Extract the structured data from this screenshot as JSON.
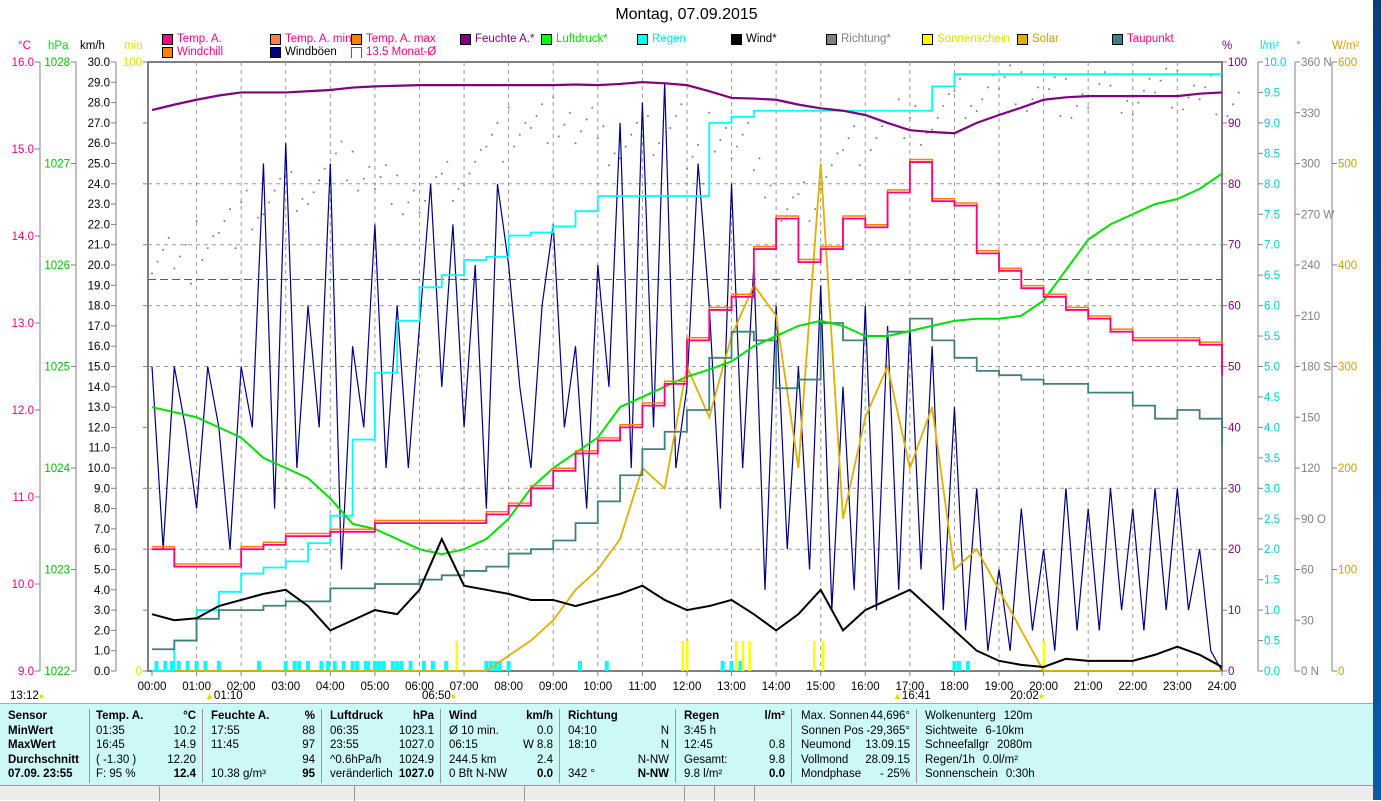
{
  "title": "Montag, 07.09.2015",
  "legend": [
    {
      "label": "Temp. A.",
      "color": "#ff0080",
      "text": "#ff0080"
    },
    {
      "label": "Temp. A. min",
      "color": "#ff8040",
      "text": "#ff0080"
    },
    {
      "label": "Temp. A. max",
      "color": "#ff8000",
      "text": "#ff0080"
    },
    {
      "label": "Feuchte A.*",
      "color": "#800080",
      "text": "#800080"
    },
    {
      "label": "Luftdruck*",
      "color": "#00ff00",
      "text": "#00e000"
    },
    {
      "label": "Regen",
      "color": "#00ffff",
      "text": "#00e0e0"
    },
    {
      "label": "Wind*",
      "color": "#000000",
      "text": "#000"
    },
    {
      "label": "Richtung*",
      "color": "#808080",
      "text": "#808080"
    },
    {
      "label": "Sonnenschein",
      "color": "#ffff00",
      "text": "#e0e000"
    },
    {
      "label": "Solar",
      "color": "#e0b000",
      "text": "#d0a000"
    },
    {
      "label": "Taupunkt",
      "color": "#408080",
      "text": "#ff0080"
    },
    {
      "label": "Windchill",
      "color": "#ff8000",
      "text": "#ff0080"
    },
    {
      "label": "Windböen",
      "color": "#000080",
      "text": "#000"
    },
    {
      "label": "13.5 Monat-Ø",
      "color": "#ff0080",
      "text": "#ff0080"
    }
  ],
  "units": {
    "c": "°C",
    "hpa": "hPa",
    "kmh": "km/h",
    "min": "min",
    "pct": "%",
    "lm2": "l/m²",
    "deg": "°",
    "wm2": "W/m²"
  },
  "chart_data": {
    "type": "line",
    "x_hours_range": [
      0,
      24
    ],
    "x_ticks": [
      "00:00",
      "01:00",
      "02:00",
      "03:00",
      "04:00",
      "05:00",
      "06:00",
      "07:00",
      "08:00",
      "09:00",
      "10:00",
      "11:00",
      "12:00",
      "13:00",
      "14:00",
      "15:00",
      "16:00",
      "17:00",
      "18:00",
      "19:00",
      "20:00",
      "21:00",
      "22:00",
      "23:00",
      "24:00"
    ],
    "axes": {
      "temp": [
        9,
        16
      ],
      "pressure": [
        1022,
        1028
      ],
      "wind": [
        0,
        30
      ],
      "sun_min": [
        0,
        100
      ],
      "humidity": [
        0,
        100
      ],
      "rain": [
        0,
        10
      ],
      "direction": [
        0,
        360
      ],
      "solar": [
        0,
        600
      ]
    },
    "monthly_avg_temp": 13.5,
    "half_hour_series": {
      "temp": [
        10.4,
        10.2,
        10.2,
        10.2,
        10.4,
        10.45,
        10.55,
        10.55,
        10.6,
        10.6,
        10.7,
        10.7,
        10.7,
        10.7,
        10.7,
        10.8,
        10.9,
        11.1,
        11.3,
        11.5,
        11.65,
        11.8,
        12.05,
        12.3,
        12.8,
        13.15,
        13.3,
        13.85,
        14.2,
        13.7,
        13.85,
        14.2,
        14.1,
        14.5,
        14.85,
        14.4,
        14.35,
        13.8,
        13.6,
        13.4,
        13.3,
        13.15,
        13.05,
        12.9,
        12.8,
        12.8,
        12.8,
        12.75,
        12.4
      ],
      "dewpoint": [
        9.25,
        9.35,
        9.6,
        9.7,
        9.7,
        9.75,
        9.8,
        9.8,
        9.95,
        9.95,
        10.0,
        10.0,
        10.05,
        10.1,
        10.15,
        10.2,
        10.35,
        10.4,
        10.5,
        10.7,
        10.95,
        11.25,
        11.55,
        11.75,
        12.0,
        12.6,
        12.9,
        12.8,
        12.25,
        12.35,
        13.0,
        12.8,
        12.85,
        12.9,
        13.05,
        12.8,
        12.6,
        12.45,
        12.4,
        12.35,
        12.3,
        12.3,
        12.2,
        12.2,
        12.05,
        11.9,
        12.0,
        11.9,
        11.6
      ],
      "pressure": [
        1024.6,
        1024.55,
        1024.5,
        1024.4,
        1024.3,
        1024.1,
        1024.0,
        1023.9,
        1023.7,
        1023.45,
        1023.4,
        1023.3,
        1023.2,
        1023.15,
        1023.2,
        1023.3,
        1023.5,
        1023.8,
        1024.0,
        1024.15,
        1024.3,
        1024.6,
        1024.7,
        1024.8,
        1024.9,
        1024.97,
        1025.05,
        1025.2,
        1025.3,
        1025.4,
        1025.45,
        1025.4,
        1025.3,
        1025.3,
        1025.35,
        1025.4,
        1025.45,
        1025.47,
        1025.47,
        1025.5,
        1025.65,
        1025.95,
        1026.25,
        1026.4,
        1026.5,
        1026.6,
        1026.65,
        1026.75,
        1026.9
      ],
      "humidity": [
        92.1,
        93,
        93.8,
        94.5,
        95,
        95,
        95,
        95.2,
        95.4,
        95.8,
        96,
        96.1,
        96.2,
        96.2,
        96.2,
        96.2,
        96.2,
        96.2,
        96.2,
        96.3,
        96.2,
        96.4,
        96.7,
        96.5,
        96.2,
        95.2,
        94.1,
        94,
        93.8,
        93,
        92.4,
        92,
        91.3,
        90,
        88.8,
        88.5,
        88.3,
        90,
        91.3,
        92.5,
        93.8,
        94.2,
        94.4,
        94.4,
        94.4,
        94.4,
        94.4,
        94.8,
        95
      ],
      "rain_total": [
        0,
        0.5,
        1.0,
        1.3,
        1.6,
        1.7,
        1.8,
        2.1,
        2.55,
        3.8,
        4.9,
        5.75,
        6.3,
        6.5,
        6.75,
        6.8,
        7.15,
        7.2,
        7.3,
        7.55,
        7.8,
        7.8,
        7.8,
        7.8,
        7.8,
        9.0,
        9.1,
        9.2,
        9.2,
        9.2,
        9.2,
        9.2,
        9.2,
        9.2,
        9.2,
        9.6,
        9.8,
        9.8,
        9.8,
        9.8,
        9.8,
        9.8,
        9.8,
        9.8,
        9.8,
        9.8,
        9.8,
        9.8,
        9.8
      ],
      "wind": [
        2.8,
        2.5,
        2.6,
        3.2,
        3.5,
        3.8,
        4.0,
        3.2,
        2.0,
        2.5,
        3.0,
        2.8,
        4.0,
        6.5,
        4.2,
        4.0,
        3.8,
        3.5,
        3.5,
        3.2,
        3.5,
        3.8,
        4.2,
        3.5,
        3.0,
        3.2,
        3.5,
        2.8,
        2.0,
        2.8,
        4.0,
        2.0,
        3.0,
        3.5,
        4.0,
        3.0,
        2.0,
        1.0,
        0.5,
        0.3,
        0.2,
        0.6,
        0.5,
        0.5,
        0.5,
        0.8,
        1.2,
        0.8,
        0.2
      ],
      "solar": [
        0,
        0,
        0,
        0,
        0,
        0,
        0,
        0,
        0,
        0,
        0,
        0,
        0,
        0,
        0,
        0,
        15,
        30,
        50,
        80,
        100,
        130,
        200,
        180,
        300,
        250,
        330,
        380,
        350,
        200,
        500,
        150,
        250,
        300,
        200,
        260,
        100,
        120,
        80,
        40,
        0,
        0,
        0,
        0,
        0,
        0,
        0,
        0,
        0
      ],
      "direction": [
        250,
        240,
        255,
        265,
        270,
        280,
        285,
        290,
        300,
        295,
        290,
        285,
        280,
        290,
        300,
        310,
        320,
        325,
        330,
        320,
        310,
        315,
        320,
        330,
        300,
        320,
        310,
        290,
        270,
        280,
        300,
        310,
        320,
        330,
        320,
        330,
        340,
        345,
        345,
        342,
        342,
        342,
        342,
        342,
        342,
        342,
        342,
        342,
        342
      ]
    },
    "gusts_15min": [
      15,
      6,
      15,
      12,
      8,
      15,
      12,
      6,
      15,
      12,
      25,
      8,
      26,
      10,
      18,
      12,
      25,
      5,
      16,
      12,
      22,
      10,
      18,
      10,
      17,
      24,
      14,
      22,
      12,
      20,
      8,
      24,
      20,
      14,
      10,
      18,
      22,
      12,
      16,
      8,
      20,
      14,
      27,
      10,
      28,
      12,
      29,
      10,
      14,
      25,
      18,
      8,
      24,
      10,
      20,
      4,
      18,
      6,
      15,
      5,
      19,
      3,
      14,
      4,
      18,
      3,
      17,
      4,
      17,
      5,
      16,
      3,
      13,
      2,
      9,
      1,
      5,
      1,
      8,
      2,
      6,
      1,
      9,
      2,
      8,
      2,
      9,
      3,
      8,
      2,
      9,
      3,
      9,
      3,
      6,
      1,
      0
    ],
    "sunshine_hours": [
      6.83,
      11.9,
      12.0,
      13.1,
      13.25,
      13.4,
      14.85,
      15.05,
      20.0
    ],
    "rain_event_hours": [
      0.1,
      0.3,
      0.45,
      0.6,
      0.8,
      1.0,
      1.2,
      1.5,
      2.4,
      3.0,
      3.2,
      3.3,
      3.5,
      3.8,
      3.95,
      4.1,
      4.3,
      4.5,
      4.6,
      4.8,
      4.85,
      5.0,
      5.1,
      5.2,
      5.4,
      5.5,
      5.6,
      5.8,
      6.1,
      6.3,
      6.6,
      7.5,
      7.6,
      7.7,
      7.8,
      8.0,
      9.6,
      10.2,
      12.8,
      13.0,
      13.2,
      18.0,
      18.1,
      18.3
    ]
  },
  "markers": [
    {
      "label": "13:12"
    },
    {
      "label": "01:10"
    },
    {
      "label": "06:50"
    },
    {
      "label": "16:41"
    },
    {
      "label": "20:02"
    }
  ],
  "table": {
    "sensor": {
      "head": "Sensor",
      "rows": [
        "MinWert",
        "MaxWert",
        "Durchschnitt",
        "07.09. 23:55"
      ]
    },
    "temp": {
      "head": "Temp. A.",
      "unit": "°C",
      "rows": [
        [
          "01:35",
          "10.2"
        ],
        [
          "16:45",
          "14.9"
        ],
        [
          "( -1.30 )",
          "12.20"
        ],
        [
          "F: 95 %",
          "12.4"
        ]
      ]
    },
    "hum": {
      "head": "Feuchte A.",
      "unit": "%",
      "rows": [
        [
          "17:55",
          "88"
        ],
        [
          "11:45",
          "97"
        ],
        [
          "",
          "94"
        ],
        [
          "10.38 g/m³",
          "95"
        ]
      ]
    },
    "press": {
      "head": "Luftdruck",
      "unit": "hPa",
      "rows": [
        [
          "06:35",
          "1023.1"
        ],
        [
          "23:55",
          "1027.0"
        ],
        [
          "^0.6hPa/h",
          "1024.9"
        ],
        [
          "veränderlich",
          "1027.0"
        ]
      ]
    },
    "wind": {
      "head": "Wind",
      "unit": "km/h",
      "rows": [
        [
          "Ø 10 min.",
          "0.0"
        ],
        [
          "06:15",
          "W 8.8"
        ],
        [
          "244.5 km",
          "2.4"
        ],
        [
          "0 Bft N-NW",
          "0.0"
        ]
      ]
    },
    "dir": {
      "head": "Richtung",
      "unit": "",
      "rows": [
        [
          "04:10",
          "N"
        ],
        [
          "18:10",
          "N"
        ],
        [
          "",
          "N-NW"
        ],
        [
          "342 °",
          "N-NW"
        ]
      ]
    },
    "rain": {
      "head": "Regen",
      "unit": "l/m²",
      "rows": [
        [
          "3:45 h",
          ""
        ],
        [
          "12:45",
          "0.8"
        ],
        [
          "Gesamt:",
          "9.8"
        ],
        [
          "9.8 l/m²",
          "0.0"
        ]
      ]
    },
    "astro": {
      "rows": [
        [
          "Max. Sonnen",
          "44,696°"
        ],
        [
          "Sonnen Pos",
          "-29,365°"
        ],
        [
          "Neumond",
          "13.09.15"
        ],
        [
          "Vollmond",
          "28.09.15"
        ],
        [
          "Mondphase",
          "- 25%"
        ]
      ]
    },
    "misc": {
      "rows": [
        [
          "Wolkenunterg",
          "120m"
        ],
        [
          "Sichtweite",
          "6-10km"
        ],
        [
          "Schneefallgr",
          "2080m"
        ],
        [
          "Regen/1h",
          "0.0l/m²"
        ],
        [
          "Sonnenschein",
          "0:30h"
        ]
      ]
    }
  }
}
